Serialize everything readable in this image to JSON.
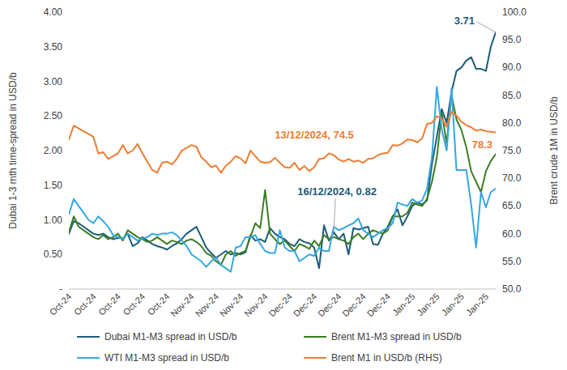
{
  "chart_data": {
    "type": "line",
    "y_label": "Dubai 1-3 mth time-spread in USD/b",
    "y2_label": "Brent crude 1M in USD/b",
    "categories": [
      "Oct-24",
      null,
      null,
      null,
      null,
      "Oct-24",
      null,
      null,
      null,
      null,
      "Oct-24",
      null,
      null,
      null,
      null,
      "Oct-24",
      null,
      null,
      null,
      null,
      "Oct-24",
      null,
      null,
      null,
      null,
      "Nov-24",
      null,
      null,
      null,
      null,
      "Nov-24",
      null,
      null,
      null,
      null,
      "Nov-24",
      null,
      null,
      null,
      null,
      "Nov-24",
      null,
      null,
      null,
      null,
      "Dec-24",
      null,
      null,
      null,
      null,
      "Dec-24",
      null,
      null,
      null,
      null,
      "Dec-24",
      null,
      null,
      null,
      null,
      "Dec-24",
      null,
      null,
      null,
      null,
      "Dec-24",
      null,
      null,
      null,
      null,
      "Jan-25",
      null,
      null,
      null,
      null,
      "Jan-25",
      null,
      null,
      null,
      null,
      "Jan-25",
      null,
      null,
      null,
      null,
      "Jan-25",
      null,
      null
    ],
    "ylim": [
      0,
      4
    ],
    "yticks": [
      {
        "value": 0,
        "label": "-"
      },
      {
        "value": 0.5,
        "label": "0.50"
      },
      {
        "value": 1,
        "label": "1.00"
      },
      {
        "value": 1.5,
        "label": "1.50"
      },
      {
        "value": 2,
        "label": "2.00"
      },
      {
        "value": 2.5,
        "label": "2.50"
      },
      {
        "value": 3,
        "label": "3.00"
      },
      {
        "value": 3.5,
        "label": "3.50"
      },
      {
        "value": 4,
        "label": "4.00"
      }
    ],
    "y2lim": [
      50,
      100
    ],
    "y2ticks": [
      {
        "value": 50,
        "label": "50.0"
      },
      {
        "value": 55,
        "label": "55.0"
      },
      {
        "value": 60,
        "label": "60.0"
      },
      {
        "value": 65,
        "label": "65.0"
      },
      {
        "value": 70,
        "label": "70.0"
      },
      {
        "value": 75,
        "label": "75.0"
      },
      {
        "value": 80,
        "label": "80.0"
      },
      {
        "value": 85,
        "label": "85.0"
      },
      {
        "value": 90,
        "label": "90.0"
      },
      {
        "value": 95,
        "label": "95.0"
      },
      {
        "value": 100,
        "label": "100.0"
      }
    ],
    "grid": false,
    "legend": "bottom",
    "series": [
      {
        "name": "Dubai M1-M3 spread in USD/b",
        "color": "#1d5b79",
        "axis": "y",
        "values": [
          0.8,
          0.98,
          0.95,
          0.9,
          0.85,
          0.8,
          0.78,
          0.8,
          0.75,
          0.72,
          0.74,
          0.73,
          0.8,
          0.62,
          0.66,
          0.75,
          0.7,
          0.65,
          0.62,
          0.6,
          0.57,
          0.62,
          0.66,
          0.72,
          0.8,
          0.85,
          0.9,
          0.75,
          0.6,
          0.52,
          0.45,
          0.5,
          0.55,
          0.5,
          0.52,
          0.5,
          0.53,
          0.78,
          0.7,
          0.72,
          0.68,
          0.88,
          0.8,
          0.75,
          0.72,
          0.65,
          0.62,
          0.72,
          0.68,
          0.66,
          0.6,
          0.3,
          0.92,
          0.7,
          0.82,
          0.72,
          0.8,
          0.5,
          0.88,
          0.86,
          0.88,
          0.9,
          0.65,
          0.64,
          0.8,
          0.9,
          1.05,
          1.15,
          0.92,
          1.05,
          1.2,
          1.25,
          1.22,
          1.28,
          1.8,
          2.2,
          2.6,
          2.4,
          2.85,
          3.15,
          3.2,
          3.3,
          3.35,
          3.18,
          3.18,
          3.15,
          3.5,
          3.71
        ]
      },
      {
        "name": "Brent M1-M3 spread in USD/b",
        "color": "#3b7d23",
        "axis": "y",
        "values": [
          0.82,
          1.05,
          0.9,
          0.85,
          0.8,
          0.75,
          0.72,
          0.78,
          0.72,
          0.75,
          0.8,
          0.7,
          0.85,
          0.8,
          0.75,
          0.72,
          0.68,
          0.7,
          0.75,
          0.7,
          0.65,
          0.7,
          0.68,
          0.65,
          0.7,
          0.72,
          0.68,
          0.62,
          0.52,
          0.48,
          0.4,
          0.35,
          0.5,
          0.55,
          0.48,
          0.52,
          0.55,
          0.75,
          0.95,
          0.88,
          1.43,
          0.8,
          0.72,
          0.65,
          0.7,
          0.62,
          0.55,
          0.65,
          0.62,
          0.58,
          0.7,
          0.62,
          0.78,
          0.72,
          0.75,
          0.72,
          0.7,
          0.65,
          0.75,
          0.8,
          0.72,
          0.8,
          0.85,
          0.82,
          0.8,
          0.85,
          1.05,
          1.05,
          1.05,
          1.1,
          1.25,
          1.22,
          1.2,
          1.3,
          1.55,
          1.9,
          2.55,
          2.1,
          2.8,
          2.45,
          2.3,
          2.05,
          1.7,
          1.55,
          1.4,
          1.7,
          1.85,
          1.95
        ]
      },
      {
        "name": "WTI M1-M3 spread in USD/b",
        "color": "#35a7e0",
        "axis": "y",
        "values": [
          1.08,
          1.3,
          1.2,
          1.1,
          1.0,
          0.95,
          1.05,
          0.98,
          0.9,
          0.78,
          0.75,
          0.72,
          0.8,
          0.75,
          0.7,
          0.73,
          0.75,
          0.8,
          0.78,
          0.8,
          0.8,
          0.82,
          0.78,
          0.7,
          0.62,
          0.5,
          0.45,
          0.4,
          0.32,
          0.4,
          0.45,
          0.35,
          0.3,
          0.25,
          0.6,
          0.62,
          0.75,
          0.75,
          0.78,
          0.65,
          0.55,
          0.52,
          0.52,
          0.85,
          0.6,
          0.55,
          0.55,
          0.4,
          0.45,
          0.5,
          0.48,
          0.6,
          0.55,
          0.55,
          0.9,
          0.85,
          0.88,
          0.92,
          0.95,
          1.02,
          0.85,
          0.8,
          0.75,
          0.8,
          0.85,
          0.88,
          0.95,
          1.25,
          1.22,
          1.2,
          1.3,
          1.25,
          1.28,
          1.45,
          1.9,
          2.92,
          2.3,
          2.0,
          2.9,
          1.72,
          1.72,
          1.72,
          1.22,
          0.6,
          1.4,
          1.18,
          1.4,
          1.45
        ]
      },
      {
        "name": "Brent M1 in USD/b (RHS)",
        "color": "#ed7d31",
        "axis": "y2",
        "values": [
          77,
          79.5,
          79,
          78.5,
          78,
          77.5,
          74.5,
          74.7,
          73.5,
          74,
          74.5,
          76,
          74.5,
          75,
          76.2,
          74.5,
          73,
          71.5,
          71,
          72.8,
          73,
          72.5,
          73.5,
          75,
          75.5,
          76,
          75.7,
          73.8,
          73,
          72,
          72.3,
          71,
          72.3,
          73,
          74,
          73.6,
          72.7,
          75,
          74,
          73,
          72.8,
          72.9,
          73.7,
          72.8,
          72,
          71.9,
          72.8,
          71.5,
          72.2,
          71.3,
          72,
          73.5,
          73.6,
          74.5,
          74.2,
          73.4,
          73,
          73.5,
          73,
          73.2,
          72.8,
          73.5,
          73.6,
          74.2,
          74.5,
          74.6,
          76.0,
          75.9,
          76.3,
          77.0,
          76.9,
          76.5,
          77.2,
          79.8,
          80.0,
          81.2,
          80.8,
          79.3,
          82.0,
          81.3,
          80.2,
          79.6,
          79.2,
          78.6,
          78.8,
          78.5,
          78.4,
          78.3
        ]
      }
    ],
    "annotations": [
      {
        "text": "3.71",
        "series": "Dubai M1-M3 spread in USD/b",
        "index": 87
      },
      {
        "text": "16/12/2024, 0.82",
        "series": "Dubai M1-M3 spread in USD/b",
        "index": 54
      },
      {
        "text": "13/12/2024, 74.5",
        "series": "Brent M1 in USD/b (RHS)",
        "index": 53
      },
      {
        "text": "78.3",
        "series": "Brent M1 in USD/b (RHS)",
        "index": 87
      }
    ]
  }
}
